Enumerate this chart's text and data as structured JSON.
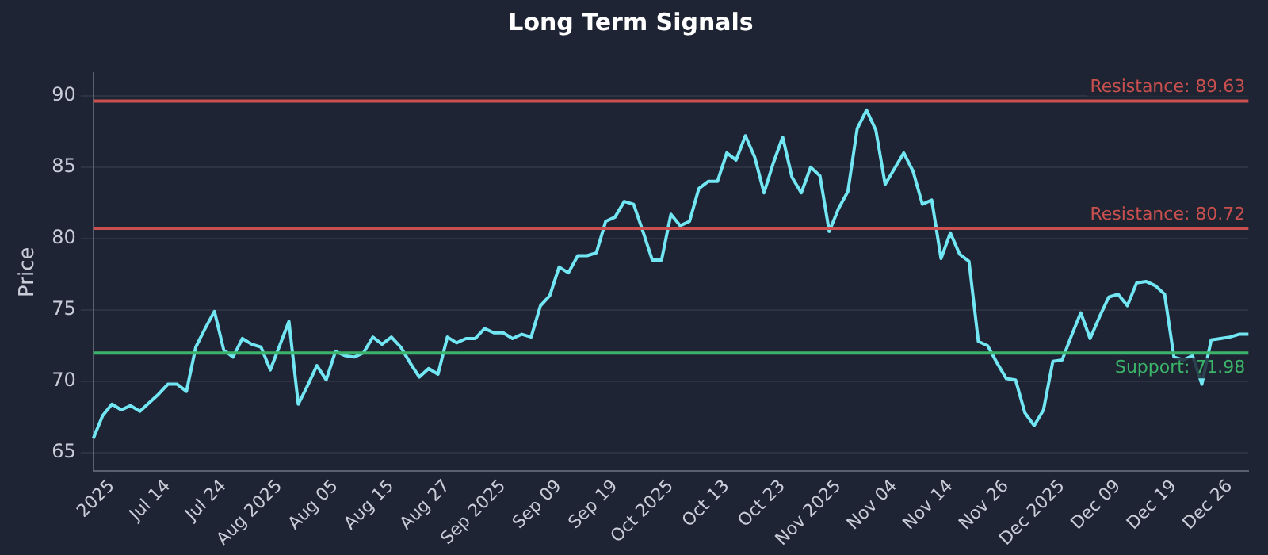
{
  "chart_data": {
    "type": "line",
    "title": "Long Term Signals",
    "ylabel": "Price",
    "categories": [
      null,
      null,
      "2025",
      null,
      null,
      null,
      null,
      null,
      "Jul 14",
      null,
      null,
      null,
      null,
      null,
      "Jul 24",
      null,
      null,
      null,
      null,
      null,
      "Aug 2025",
      null,
      null,
      null,
      null,
      null,
      "Aug 05",
      null,
      null,
      null,
      null,
      null,
      "Aug 15",
      null,
      null,
      null,
      null,
      null,
      "Aug 27",
      null,
      null,
      null,
      null,
      null,
      "Sep 2025",
      null,
      null,
      null,
      null,
      null,
      "Sep 09",
      null,
      null,
      null,
      null,
      null,
      "Sep 19",
      null,
      null,
      null,
      null,
      null,
      "Oct 2025",
      null,
      null,
      null,
      null,
      null,
      "Oct 13",
      null,
      null,
      null,
      null,
      null,
      "Oct 23",
      null,
      null,
      null,
      null,
      null,
      "Nov 2025",
      null,
      null,
      null,
      null,
      null,
      "Nov 04",
      null,
      null,
      null,
      null,
      null,
      "Nov 14",
      null,
      null,
      null,
      null,
      null,
      "Nov 26",
      null,
      null,
      null,
      null,
      null,
      "Dec 2025",
      null,
      null,
      null,
      null,
      null,
      "Dec 09",
      null,
      null,
      null,
      null,
      null,
      "Dec 19",
      null,
      null,
      null,
      null,
      null,
      "Dec 26",
      null,
      null
    ],
    "series": [
      {
        "color": "#72e6f2",
        "values": [
          66.0,
          67.6,
          68.4,
          68.0,
          68.3,
          67.9,
          68.5,
          69.1,
          69.8,
          69.8,
          69.3,
          72.4,
          73.7,
          74.9,
          72.2,
          71.7,
          73.0,
          72.6,
          72.4,
          70.8,
          72.5,
          74.2,
          68.4,
          69.7,
          71.1,
          70.1,
          72.1,
          71.8,
          71.7,
          72.0,
          73.1,
          72.6,
          73.1,
          72.4,
          71.3,
          70.3,
          70.9,
          70.5,
          73.1,
          72.7,
          73.0,
          73.0,
          73.7,
          73.4,
          73.4,
          73.0,
          73.3,
          73.1,
          75.3,
          76.0,
          78.0,
          77.6,
          78.8,
          78.8,
          79.0,
          81.2,
          81.5,
          82.6,
          82.4,
          80.5,
          78.5,
          78.5,
          81.7,
          80.9,
          81.2,
          83.5,
          84.0,
          84.0,
          86.0,
          85.5,
          87.2,
          85.7,
          83.2,
          85.3,
          87.1,
          84.3,
          83.2,
          85.0,
          84.4,
          80.5,
          82.1,
          83.3,
          87.7,
          89.0,
          87.6,
          83.8,
          84.9,
          86.0,
          84.7,
          82.4,
          82.7,
          78.6,
          80.4,
          78.9,
          78.4,
          72.8,
          72.5,
          71.3,
          70.2,
          70.1,
          67.8,
          66.9,
          68.0,
          71.4,
          71.5,
          73.2,
          74.8,
          73.0,
          74.5,
          75.9,
          76.1,
          75.3,
          76.9,
          77.0,
          76.7,
          76.1,
          71.7,
          71.5,
          71.8,
          69.8,
          72.9,
          73.0,
          73.1,
          73.3,
          73.3
        ]
      }
    ],
    "ylim": [
      63.7,
      91.6
    ],
    "yticks": [
      65,
      70,
      75,
      80,
      85,
      90
    ],
    "grid": "y",
    "legend": false,
    "marker": "none",
    "line_style": "solid",
    "ref_lines": [
      {
        "axis": "y",
        "value": 89.63,
        "label": "Resistance: 89.63",
        "color": "#c9504f"
      },
      {
        "axis": "y",
        "value": 80.72,
        "label": "Resistance: 80.72",
        "color": "#c9504f"
      },
      {
        "axis": "y",
        "value": 71.98,
        "label": "Support: 71.98",
        "color": "#3cb36a"
      }
    ]
  }
}
